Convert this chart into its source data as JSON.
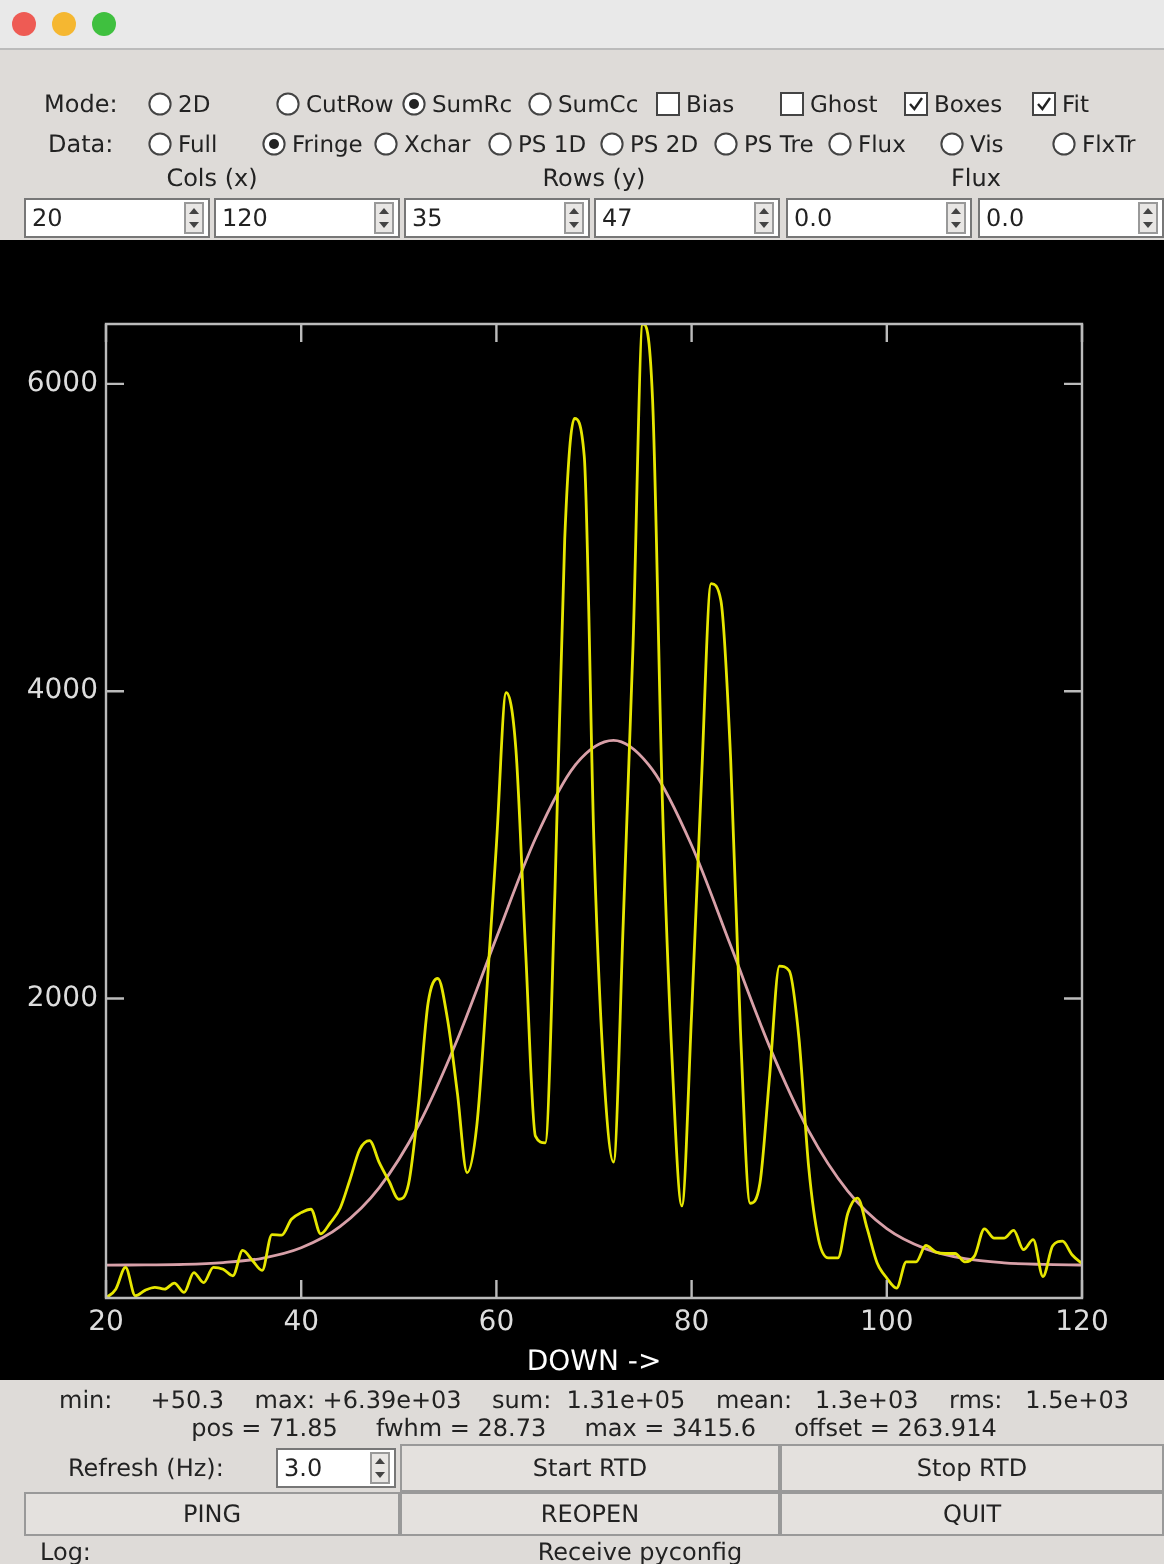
{
  "chart_data": {
    "type": "line",
    "xlabel": "DOWN ->",
    "marker": "none",
    "xlim": [
      20,
      120
    ],
    "xticks": [
      20,
      40,
      60,
      80,
      100,
      120
    ],
    "ylim": [
      50.3,
      6390
    ],
    "yticks": [
      2000,
      4000,
      6000
    ],
    "x": [
      20,
      21,
      22,
      23,
      24,
      25,
      26,
      27,
      28,
      29,
      30,
      31,
      32,
      33,
      34,
      35,
      36,
      37,
      38,
      39,
      40,
      41,
      42,
      43,
      44,
      45,
      46,
      47,
      48,
      49,
      50,
      51,
      52,
      53,
      54,
      55,
      56,
      57,
      58,
      59,
      60,
      61,
      62,
      63,
      64,
      65,
      66,
      67,
      68,
      69,
      70,
      71,
      72,
      73,
      74,
      75,
      76,
      77,
      78,
      79,
      80,
      81,
      82,
      83,
      84,
      85,
      86,
      87,
      88,
      89,
      90,
      91,
      92,
      93,
      94,
      95,
      96,
      97,
      98,
      99,
      100,
      101,
      102,
      103,
      104,
      105,
      106,
      107,
      108,
      109,
      110,
      111,
      112,
      113,
      114,
      115,
      116,
      117,
      118,
      119,
      120
    ],
    "series": [
      {
        "color": "#e6e600",
        "values": [
          50.3,
          108,
          250,
          65,
          100,
          120,
          108,
          147,
          87,
          216,
          150,
          250,
          238,
          195,
          360,
          295,
          230,
          463,
          459,
          563,
          606,
          628,
          468,
          541,
          636,
          822,
          1017,
          1074,
          931,
          810,
          693,
          792,
          1299,
          1970,
          2130,
          1861,
          1385,
          866,
          1177,
          2035,
          3000,
          3990,
          3620,
          2300,
          1104,
          1060,
          2700,
          4990,
          5775,
          5530,
          3000,
          1524,
          935,
          2500,
          4300,
          6390,
          5900,
          3300,
          1600,
          650,
          1900,
          3400,
          4700,
          4590,
          3560,
          1800,
          667,
          797,
          1500,
          2210,
          2180,
          1740,
          900,
          433,
          312,
          312,
          600,
          700,
          500,
          280,
          180,
          115,
          285,
          285,
          392,
          350,
          340,
          340,
          285,
          325,
          500,
          440,
          440,
          490,
          365,
          430,
          190,
          390,
          420,
          330,
          275
        ]
      },
      {
        "color": "#d8a0a8",
        "x": [
          20,
          24,
          28,
          32,
          36,
          40,
          44,
          48,
          52,
          56,
          60,
          64,
          68,
          72,
          76,
          80,
          84,
          88,
          92,
          96,
          100,
          104,
          108,
          112,
          116,
          120
        ],
        "values": [
          264,
          266,
          269,
          281,
          309,
          377,
          516,
          769,
          1173,
          1733,
          2395,
          3041,
          3513,
          3680,
          3488,
          2997,
          2344,
          1685,
          1138,
          746,
          502,
          370,
          306,
          279,
          269,
          265
        ]
      }
    ],
    "annotations": [
      "Mode:",
      "2D",
      "CutRow",
      "SumRc",
      "SumCc",
      "Bias",
      "Ghost",
      "Boxes",
      "Fit",
      "Data:",
      "Full",
      "Fringe",
      "Xchar",
      "PS 1D",
      "PS 2D",
      "PS Tre",
      "Flux",
      "Vis",
      "FlxTr",
      "Cols (x)",
      "Rows (y)",
      "Flux",
      "20",
      "120",
      "35",
      "47",
      "0.0",
      "0.0",
      "min:     +50.3    max: +6.39e+03    sum:  1.31e+05    mean:   1.3e+03    rms:   1.5e+03",
      "pos = 71.85     fwhm = 28.73     max = 3415.6     offset = 263.914",
      "Refresh (Hz):",
      "3.0",
      "Start RTD",
      "Stop RTD",
      "PING",
      "REOPEN",
      "QUIT",
      "Log:",
      "Receive pyconfig"
    ]
  }
}
